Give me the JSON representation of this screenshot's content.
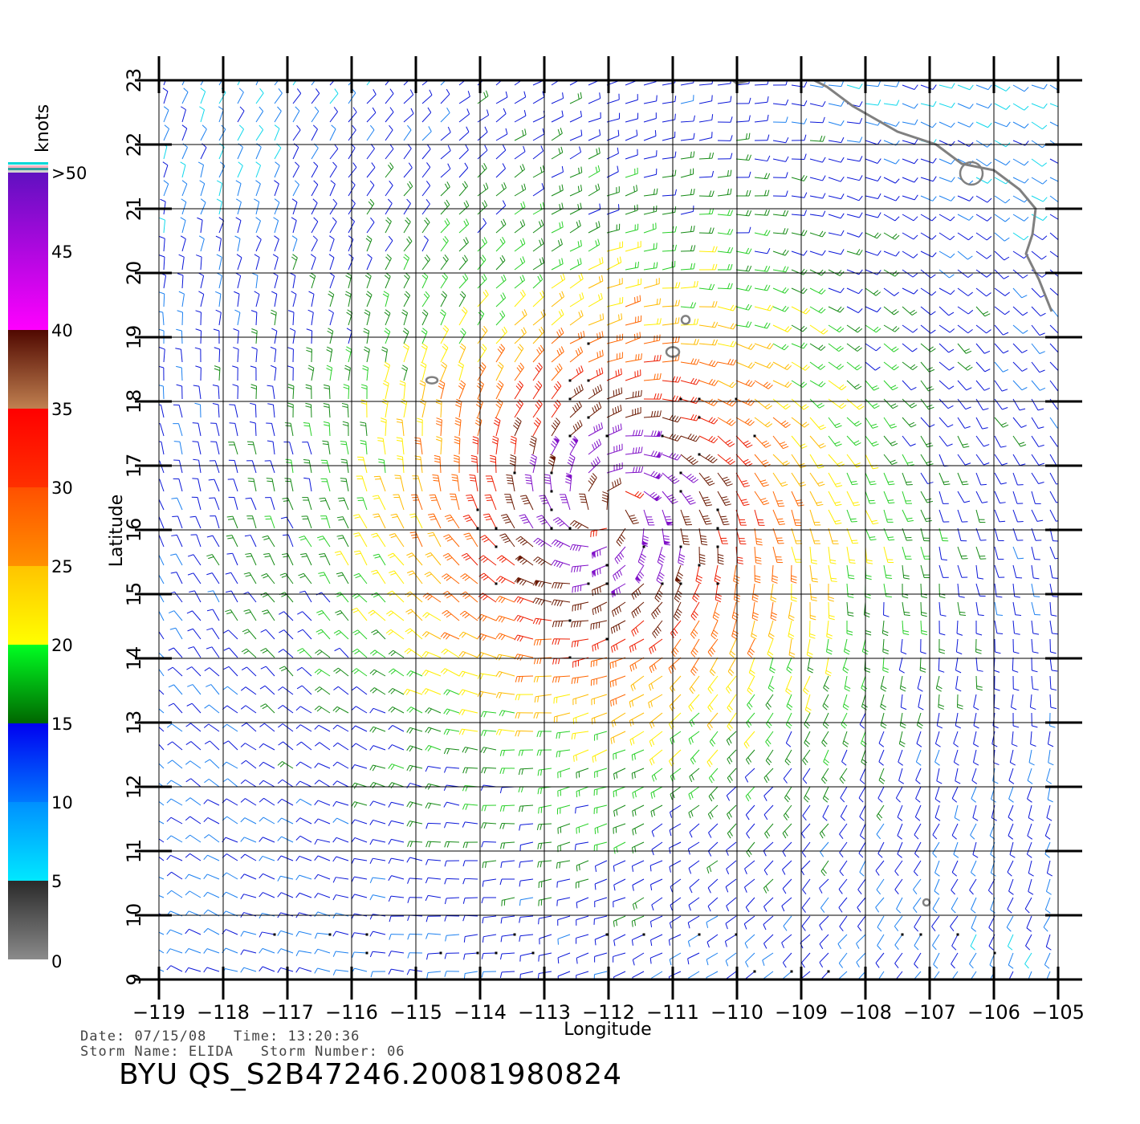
{
  "colorbar": {
    "unit_label": "knots",
    "stops": [
      {
        "label": "0",
        "value": 0
      },
      {
        "label": "5",
        "value": 5
      },
      {
        "label": "10",
        "value": 10
      },
      {
        "label": "15",
        "value": 15
      },
      {
        "label": "20",
        "value": 20
      },
      {
        "label": "25",
        "value": 25
      },
      {
        "label": "30",
        "value": 30
      },
      {
        "label": "35",
        "value": 35
      },
      {
        "label": "40",
        "value": 40
      },
      {
        "label": "45",
        "value": 45
      },
      {
        "label": ">50",
        "value": 50
      }
    ],
    "bands": [
      {
        "from": 0,
        "to": 5,
        "colors": [
          "#8a8a8a",
          "#2a2a2a"
        ]
      },
      {
        "from": 5,
        "to": 10,
        "colors": [
          "#00e8ff",
          "#0090ff"
        ]
      },
      {
        "from": 10,
        "to": 15,
        "colors": [
          "#0078ff",
          "#0000f0"
        ]
      },
      {
        "from": 15,
        "to": 20,
        "colors": [
          "#006600",
          "#00ff22"
        ]
      },
      {
        "from": 20,
        "to": 25,
        "colors": [
          "#ffff00",
          "#ffc400"
        ]
      },
      {
        "from": 25,
        "to": 30,
        "colors": [
          "#ff9000",
          "#ff5000"
        ]
      },
      {
        "from": 30,
        "to": 35,
        "colors": [
          "#ff3000",
          "#ff0000"
        ]
      },
      {
        "from": 35,
        "to": 40,
        "colors": [
          "#c08050",
          "#500800"
        ]
      },
      {
        "from": 40,
        "to": 50,
        "colors": [
          "#ff00ff",
          "#6010c0"
        ]
      }
    ]
  },
  "map": {
    "lon_ticks": [
      "−119",
      "−118",
      "−117",
      "−116",
      "−115",
      "−114",
      "−113",
      "−112",
      "−111",
      "−110",
      "−109",
      "−108",
      "−107",
      "−106",
      "−105"
    ],
    "lat_ticks": [
      "9",
      "10",
      "11",
      "12",
      "13",
      "14",
      "15",
      "16",
      "17",
      "18",
      "19",
      "20",
      "21",
      "22",
      "23"
    ],
    "lon_range": [
      -119,
      -105
    ],
    "lat_range": [
      9,
      23
    ],
    "xlabel": "Longitude",
    "ylabel": "Latitude",
    "storm_center": {
      "lon": -112,
      "lat": 16.3
    },
    "wind_field": "cyclonic barbs colored by speed, strongest (>40 knots) near -112 lon, 15.5-16.5 lat"
  },
  "info": {
    "date_label": "Date:",
    "date": "07/15/08",
    "time_label": "Time:",
    "time": "13:20:36",
    "storm_name_label": "Storm Name:",
    "storm_name": "ELIDA",
    "storm_number_label": "Storm Number:",
    "storm_number": "06",
    "product_id": "BYU QS_S2B47246.20081980824"
  }
}
